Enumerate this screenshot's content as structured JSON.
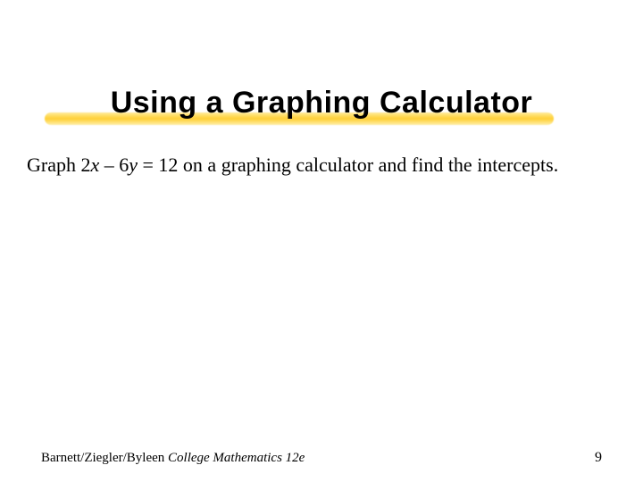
{
  "slide": {
    "title": "Using a Graphing Calculator",
    "title_fontsize_pt": 34,
    "title_font_family": "Arial",
    "title_font_weight": 900,
    "underline_color_start": "#ffdc46",
    "underline_color_mid": "#ffcd28",
    "background_color": "#ffffff",
    "body": {
      "prefix": "Graph 2",
      "var1": "x",
      "mid": " – 6",
      "var2": "y",
      "suffix": " = 12 on a graphing calculator and find the intercepts.",
      "fontsize_pt": 22,
      "font_family": "Times New Roman"
    },
    "footer": {
      "source_plain": "Barnett/Ziegler/Byleen ",
      "source_italic": "College Mathematics 12e",
      "page_number": "9",
      "fontsize_pt": 15
    }
  }
}
